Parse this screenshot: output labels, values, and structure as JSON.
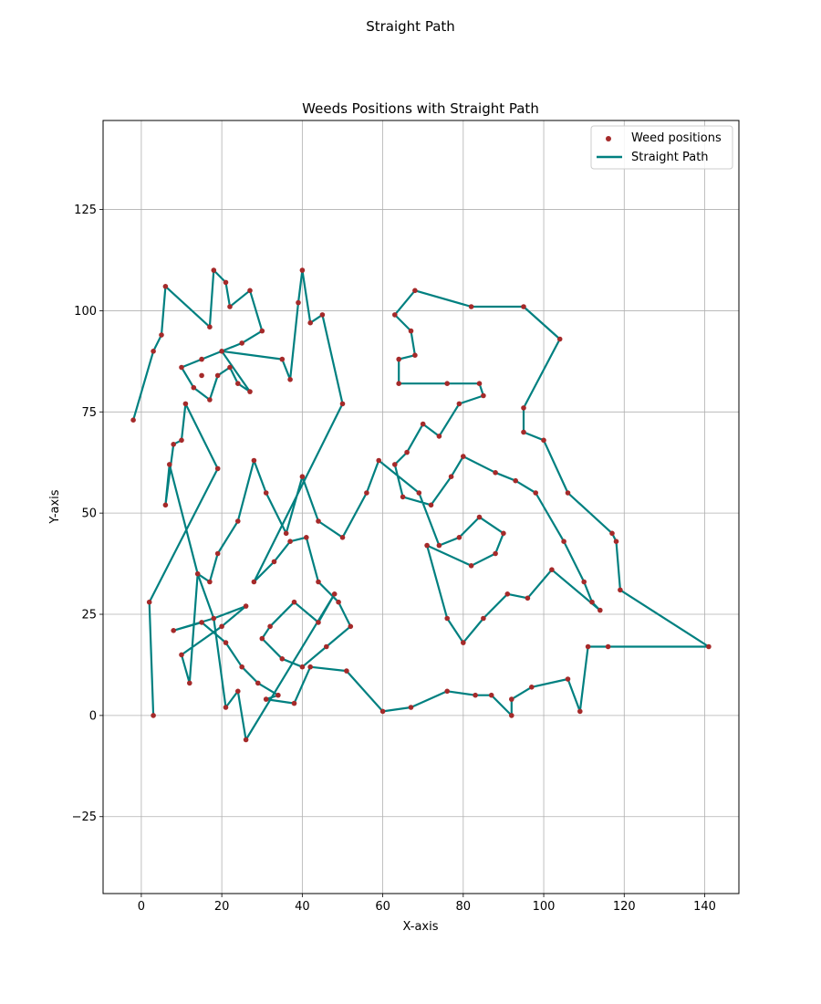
{
  "figure": {
    "suptitle": "Straight Path"
  },
  "chart_data": {
    "type": "line",
    "title": "Weeds Positions with Straight Path",
    "xlabel": "X-axis",
    "ylabel": "Y-axis",
    "xlim": [
      -9.5,
      148.5
    ],
    "ylim": [
      -44,
      147
    ],
    "xticks": [
      0,
      20,
      40,
      60,
      80,
      100,
      120,
      140
    ],
    "yticks": [
      -25,
      0,
      25,
      50,
      75,
      100,
      125
    ],
    "grid": true,
    "legend_position": "upper right",
    "series": [
      {
        "name": "Weed positions",
        "kind": "scatter",
        "color": "#a52a2a",
        "points": [
          [
            -2,
            73
          ],
          [
            3,
            90
          ],
          [
            5,
            94
          ],
          [
            6,
            106
          ],
          [
            6,
            52
          ],
          [
            7,
            62
          ],
          [
            8,
            67
          ],
          [
            10,
            68
          ],
          [
            11,
            77
          ],
          [
            12,
            8
          ],
          [
            15,
            88
          ],
          [
            17,
            96
          ],
          [
            18,
            110
          ],
          [
            19,
            61
          ],
          [
            21,
            107
          ],
          [
            22,
            101
          ],
          [
            25,
            92
          ],
          [
            26,
            -6
          ],
          [
            27,
            105
          ],
          [
            30,
            95
          ],
          [
            35,
            88
          ],
          [
            37,
            83
          ],
          [
            39,
            102
          ],
          [
            40,
            110
          ],
          [
            42,
            97
          ],
          [
            45,
            99
          ],
          [
            50,
            77
          ],
          [
            2,
            28
          ],
          [
            3,
            0
          ],
          [
            8,
            21
          ],
          [
            10,
            15
          ],
          [
            14,
            35
          ],
          [
            18,
            24
          ],
          [
            21,
            2
          ],
          [
            24,
            6
          ],
          [
            31,
            4
          ],
          [
            38,
            3
          ],
          [
            42,
            12
          ],
          [
            51,
            11
          ],
          [
            60,
            1
          ],
          [
            67,
            2
          ],
          [
            76,
            6
          ],
          [
            83,
            5
          ],
          [
            87,
            5
          ],
          [
            92,
            0
          ],
          [
            92,
            4
          ],
          [
            97,
            7
          ],
          [
            106,
            9
          ],
          [
            109,
            1
          ],
          [
            111,
            17
          ],
          [
            116,
            17
          ],
          [
            141,
            17
          ],
          [
            119,
            31
          ],
          [
            118,
            43
          ],
          [
            117,
            45
          ],
          [
            106,
            55
          ],
          [
            100,
            68
          ],
          [
            95,
            76
          ],
          [
            95,
            70
          ],
          [
            104,
            93
          ],
          [
            95,
            101
          ],
          [
            82,
            101
          ],
          [
            68,
            105
          ],
          [
            63,
            99
          ],
          [
            67,
            95
          ],
          [
            68,
            89
          ],
          [
            64,
            88
          ],
          [
            64,
            82
          ],
          [
            76,
            82
          ],
          [
            84,
            82
          ],
          [
            85,
            79
          ],
          [
            79,
            77
          ],
          [
            74,
            69
          ],
          [
            70,
            72
          ],
          [
            66,
            65
          ],
          [
            63,
            62
          ],
          [
            65,
            54
          ],
          [
            72,
            52
          ],
          [
            77,
            59
          ],
          [
            80,
            64
          ],
          [
            88,
            60
          ],
          [
            93,
            58
          ],
          [
            98,
            55
          ],
          [
            105,
            43
          ],
          [
            110,
            33
          ],
          [
            112,
            28
          ],
          [
            114,
            26
          ],
          [
            102,
            36
          ],
          [
            96,
            29
          ],
          [
            91,
            30
          ],
          [
            85,
            24
          ],
          [
            80,
            18
          ],
          [
            76,
            24
          ],
          [
            71,
            42
          ],
          [
            82,
            37
          ],
          [
            88,
            40
          ],
          [
            90,
            45
          ],
          [
            84,
            49
          ],
          [
            79,
            44
          ],
          [
            74,
            42
          ],
          [
            69,
            55
          ],
          [
            59,
            63
          ],
          [
            56,
            55
          ],
          [
            50,
            44
          ],
          [
            44,
            48
          ],
          [
            40,
            59
          ],
          [
            36,
            45
          ],
          [
            31,
            55
          ],
          [
            28,
            63
          ],
          [
            24,
            48
          ],
          [
            19,
            40
          ],
          [
            17,
            33
          ],
          [
            15,
            23
          ],
          [
            20,
            22
          ],
          [
            26,
            27
          ],
          [
            32,
            22
          ],
          [
            38,
            28
          ],
          [
            44,
            23
          ],
          [
            48,
            30
          ],
          [
            52,
            22
          ],
          [
            46,
            17
          ],
          [
            40,
            12
          ],
          [
            35,
            14
          ],
          [
            30,
            19
          ],
          [
            28,
            33
          ],
          [
            33,
            38
          ],
          [
            37,
            43
          ],
          [
            41,
            44
          ],
          [
            44,
            33
          ],
          [
            49,
            28
          ],
          [
            21,
            18
          ],
          [
            25,
            12
          ],
          [
            29,
            8
          ],
          [
            34,
            5
          ],
          [
            17,
            78
          ],
          [
            19,
            84
          ],
          [
            22,
            86
          ],
          [
            24,
            82
          ],
          [
            27,
            80
          ],
          [
            20,
            90
          ],
          [
            15,
            84
          ],
          [
            13,
            81
          ],
          [
            10,
            86
          ]
        ]
      },
      {
        "name": "Straight Path",
        "kind": "line",
        "color": "#008080",
        "points": [
          [
            60,
            1
          ],
          [
            51,
            11
          ],
          [
            42,
            12
          ],
          [
            38,
            3
          ],
          [
            31,
            4
          ],
          [
            34,
            5
          ],
          [
            29,
            8
          ],
          [
            25,
            12
          ],
          [
            21,
            18
          ],
          [
            15,
            23
          ],
          [
            8,
            21
          ],
          [
            18,
            24
          ],
          [
            26,
            27
          ],
          [
            20,
            22
          ],
          [
            10,
            15
          ],
          [
            12,
            8
          ],
          [
            14,
            35
          ],
          [
            17,
            33
          ],
          [
            19,
            40
          ],
          [
            24,
            48
          ],
          [
            28,
            63
          ],
          [
            31,
            55
          ],
          [
            36,
            45
          ],
          [
            40,
            59
          ],
          [
            44,
            48
          ],
          [
            50,
            44
          ],
          [
            56,
            55
          ],
          [
            59,
            63
          ],
          [
            69,
            55
          ],
          [
            74,
            42
          ],
          [
            79,
            44
          ],
          [
            84,
            49
          ],
          [
            90,
            45
          ],
          [
            88,
            40
          ],
          [
            82,
            37
          ],
          [
            71,
            42
          ],
          [
            76,
            24
          ],
          [
            80,
            18
          ],
          [
            85,
            24
          ],
          [
            91,
            30
          ],
          [
            96,
            29
          ],
          [
            102,
            36
          ],
          [
            114,
            26
          ],
          [
            112,
            28
          ],
          [
            110,
            33
          ],
          [
            105,
            43
          ],
          [
            98,
            55
          ],
          [
            93,
            58
          ],
          [
            88,
            60
          ],
          [
            80,
            64
          ],
          [
            77,
            59
          ],
          [
            72,
            52
          ],
          [
            65,
            54
          ],
          [
            63,
            62
          ],
          [
            66,
            65
          ],
          [
            70,
            72
          ],
          [
            74,
            69
          ],
          [
            79,
            77
          ],
          [
            85,
            79
          ],
          [
            84,
            82
          ],
          [
            76,
            82
          ],
          [
            64,
            82
          ],
          [
            64,
            88
          ],
          [
            68,
            89
          ],
          [
            67,
            95
          ],
          [
            63,
            99
          ],
          [
            68,
            105
          ],
          [
            82,
            101
          ],
          [
            95,
            101
          ],
          [
            104,
            93
          ],
          [
            95,
            76
          ],
          [
            95,
            70
          ],
          [
            100,
            68
          ],
          [
            106,
            55
          ],
          [
            117,
            45
          ],
          [
            118,
            43
          ],
          [
            119,
            31
          ],
          [
            141,
            17
          ],
          [
            116,
            17
          ],
          [
            111,
            17
          ],
          [
            109,
            1
          ],
          [
            106,
            9
          ],
          [
            97,
            7
          ],
          [
            92,
            4
          ],
          [
            92,
            0
          ],
          [
            87,
            5
          ],
          [
            83,
            5
          ],
          [
            76,
            6
          ],
          [
            67,
            2
          ],
          [
            60,
            1
          ]
        ]
      },
      {
        "name": "Straight Path",
        "kind": "line",
        "color": "#008080",
        "points": [
          [
            -2,
            73
          ],
          [
            3,
            90
          ],
          [
            5,
            94
          ],
          [
            6,
            106
          ],
          [
            17,
            96
          ],
          [
            18,
            110
          ],
          [
            21,
            107
          ],
          [
            22,
            101
          ],
          [
            27,
            105
          ],
          [
            30,
            95
          ],
          [
            25,
            92
          ],
          [
            15,
            88
          ],
          [
            10,
            86
          ],
          [
            13,
            81
          ],
          [
            17,
            78
          ],
          [
            19,
            84
          ],
          [
            22,
            86
          ],
          [
            24,
            82
          ],
          [
            27,
            80
          ],
          [
            20,
            90
          ],
          [
            35,
            88
          ],
          [
            37,
            83
          ],
          [
            39,
            102
          ],
          [
            40,
            110
          ],
          [
            42,
            97
          ],
          [
            45,
            99
          ],
          [
            50,
            77
          ],
          [
            28,
            33
          ],
          [
            33,
            38
          ],
          [
            37,
            43
          ],
          [
            41,
            44
          ],
          [
            44,
            33
          ],
          [
            49,
            28
          ],
          [
            52,
            22
          ],
          [
            46,
            17
          ],
          [
            40,
            12
          ],
          [
            35,
            14
          ],
          [
            30,
            19
          ],
          [
            32,
            22
          ],
          [
            38,
            28
          ],
          [
            44,
            23
          ],
          [
            48,
            30
          ],
          [
            26,
            -6
          ],
          [
            24,
            6
          ],
          [
            21,
            2
          ],
          [
            18,
            24
          ],
          [
            14,
            35
          ],
          [
            7,
            62
          ],
          [
            6,
            52
          ],
          [
            8,
            67
          ],
          [
            10,
            68
          ],
          [
            11,
            77
          ],
          [
            19,
            61
          ],
          [
            2,
            28
          ],
          [
            3,
            0
          ]
        ]
      }
    ]
  }
}
